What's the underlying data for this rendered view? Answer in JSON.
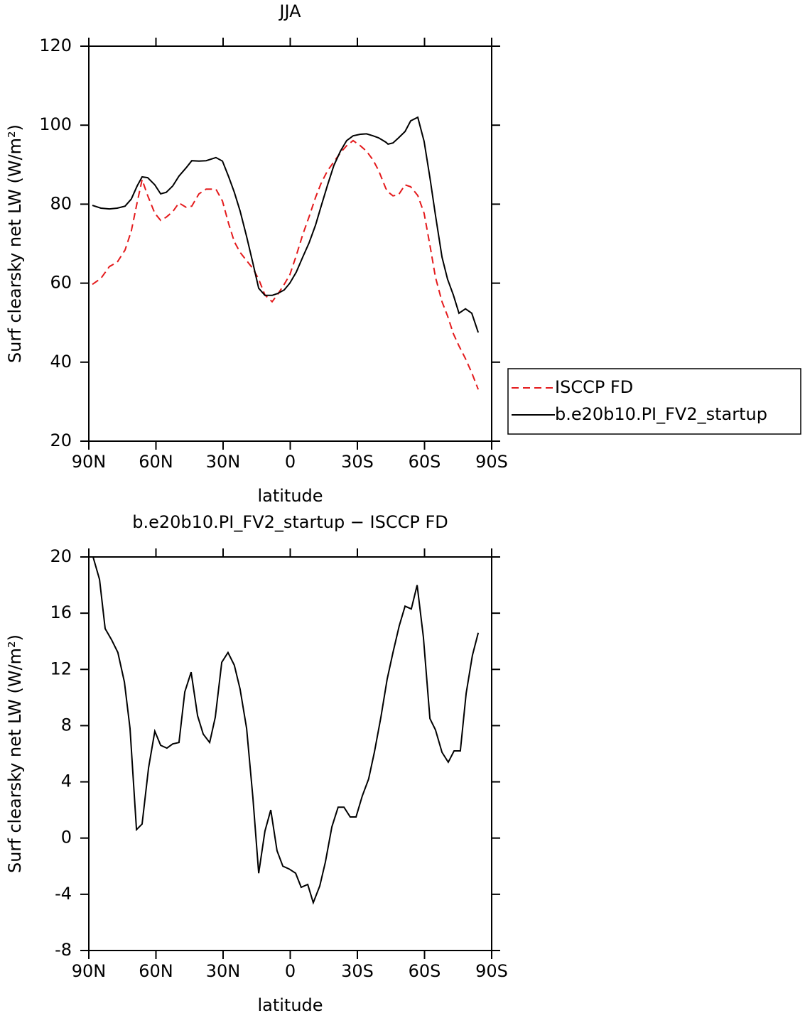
{
  "chart_data": [
    {
      "type": "line",
      "title": "JJA",
      "xlabel": "latitude",
      "ylabel": "Surf clearsky net LW (W/m²)",
      "xlim": [
        90,
        -90
      ],
      "ylim": [
        20,
        120
      ],
      "xticks": [
        {
          "value": 90,
          "label": "90N"
        },
        {
          "value": 60,
          "label": "60N"
        },
        {
          "value": 30,
          "label": "30N"
        },
        0,
        {
          "value": -30,
          "label": "30S"
        },
        {
          "value": -60,
          "label": "60S"
        },
        {
          "value": -90,
          "label": "90S"
        }
      ],
      "yticks": [
        20,
        40,
        60,
        80,
        100,
        120
      ],
      "legend": "right",
      "x": [
        88.4,
        84.6,
        80.8,
        77.3,
        73.8,
        71.0,
        68.4,
        66.2,
        63.7,
        60.5,
        57.9,
        55.4,
        52.5,
        49.7,
        46.5,
        44.0,
        40.8,
        37.6,
        33.2,
        30.3,
        27.5,
        25.0,
        22.4,
        19.5,
        16.7,
        14.1,
        11.3,
        8.1,
        5.6,
        2.7,
        0.2,
        -2.7,
        -5.6,
        -8.4,
        -11.3,
        -13.8,
        -16.7,
        -19.5,
        -22.4,
        -25.2,
        -28.1,
        -31.3,
        -34.1,
        -37.0,
        -39.5,
        -42.7,
        -43.7,
        -45.9,
        -48.4,
        -51.3,
        -53.8,
        -57.0,
        -59.8,
        -62.4,
        -64.9,
        -67.8,
        -70.3,
        -72.9,
        -75.4,
        -78.3,
        -81.1,
        -84.0
      ],
      "series": [
        {
          "name": "ISCCP FD",
          "color": "#e41a1c",
          "line_style": "dashed",
          "values": [
            59.7,
            61.2,
            64.2,
            65.3,
            68.4,
            73.2,
            80.4,
            86.2,
            82.2,
            77.7,
            75.9,
            76.7,
            78.1,
            80.3,
            79.2,
            79.5,
            82.6,
            83.8,
            83.8,
            80.8,
            75.0,
            70.5,
            67.8,
            65.7,
            63.7,
            61.0,
            57.0,
            55.3,
            57.2,
            59.7,
            62.1,
            67.0,
            72.3,
            76.8,
            81.7,
            85.3,
            88.5,
            90.7,
            93.0,
            94.8,
            96.1,
            94.8,
            93.4,
            91.2,
            88.5,
            84.0,
            83.1,
            82.1,
            82.4,
            84.9,
            84.4,
            82.2,
            77.7,
            69.6,
            61.5,
            55.3,
            51.7,
            47.2,
            44.1,
            40.9,
            37.3,
            33.1
          ]
        },
        {
          "name": "b.e20b10.PI_FV2_startup",
          "color": "#000000",
          "line_style": "solid",
          "values": [
            79.7,
            79.0,
            78.8,
            79.0,
            79.5,
            81.3,
            84.6,
            86.9,
            86.7,
            84.9,
            82.6,
            83.0,
            84.6,
            87.1,
            89.2,
            91.0,
            90.9,
            91.0,
            91.8,
            90.9,
            86.9,
            83.0,
            78.3,
            71.8,
            65.1,
            58.7,
            56.9,
            56.9,
            57.4,
            58.3,
            60.0,
            62.8,
            66.6,
            70.2,
            74.7,
            79.5,
            84.9,
            89.8,
            93.4,
            96.1,
            97.3,
            97.7,
            97.8,
            97.3,
            96.8,
            95.7,
            95.2,
            95.5,
            96.8,
            98.4,
            101.1,
            102.0,
            95.9,
            86.7,
            77.2,
            66.6,
            61.0,
            57.0,
            52.4,
            53.5,
            52.4,
            47.5
          ]
        }
      ]
    },
    {
      "type": "line",
      "title": "b.e20b10.PI_FV2_startup − ISCCP FD",
      "xlabel": "latitude",
      "ylabel": "Surf clearsky net LW (W/m²)",
      "xlim": [
        90,
        -90
      ],
      "ylim": [
        -8,
        20
      ],
      "xticks": [
        {
          "value": 90,
          "label": "90N"
        },
        {
          "value": 60,
          "label": "60N"
        },
        {
          "value": 30,
          "label": "30N"
        },
        0,
        {
          "value": -30,
          "label": "30S"
        },
        {
          "value": -60,
          "label": "60S"
        },
        {
          "value": -90,
          "label": "90S"
        }
      ],
      "yticks": [
        -8,
        -4,
        0,
        4,
        8,
        12,
        16,
        20
      ],
      "x": [
        88.1,
        85.2,
        82.7,
        79.8,
        77.0,
        74.1,
        71.6,
        68.7,
        66.2,
        63.3,
        60.5,
        57.9,
        55.1,
        52.5,
        49.7,
        47.1,
        44.3,
        41.4,
        38.9,
        36.0,
        33.5,
        30.6,
        27.8,
        25.0,
        22.4,
        19.5,
        16.7,
        14.1,
        11.3,
        8.7,
        5.9,
        3.3,
        0.5,
        -2.4,
        -4.9,
        -7.8,
        -10.3,
        -13.2,
        -15.7,
        -18.6,
        -21.4,
        -24.0,
        -26.8,
        -29.4,
        -32.2,
        -35.0,
        -37.6,
        -40.5,
        -43.3,
        -45.9,
        -48.7,
        -51.3,
        -54.1,
        -56.7,
        -59.5,
        -62.4,
        -64.9,
        -67.8,
        -70.6,
        -73.2,
        -76.0,
        -78.6,
        -81.4,
        -84.0
      ],
      "series": [
        {
          "color": "#000000",
          "line_style": "solid",
          "values": [
            20.0,
            18.4,
            14.9,
            14.1,
            13.2,
            11.1,
            7.8,
            0.6,
            1.0,
            5.0,
            7.6,
            6.6,
            6.4,
            6.7,
            6.8,
            10.4,
            11.8,
            8.7,
            7.4,
            6.8,
            8.6,
            12.5,
            13.2,
            12.3,
            10.6,
            7.8,
            2.9,
            -2.5,
            0.5,
            2.0,
            -0.9,
            -2.0,
            -2.2,
            -2.5,
            -3.5,
            -3.3,
            -4.6,
            -3.4,
            -1.7,
            0.8,
            2.2,
            2.2,
            1.5,
            1.5,
            3.0,
            4.2,
            6.1,
            8.6,
            11.3,
            13.2,
            15.1,
            16.5,
            16.3,
            18.0,
            14.3,
            8.5,
            7.7,
            6.1,
            5.4,
            6.2,
            6.2,
            10.3,
            13.0,
            14.6
          ]
        }
      ]
    }
  ]
}
